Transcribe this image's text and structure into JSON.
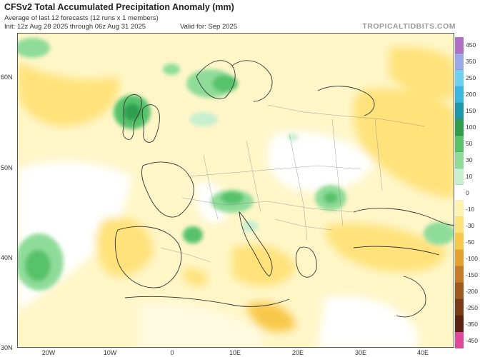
{
  "header": {
    "title": "CFSv2 Total Accumulated Precipitation Anomaly (mm)",
    "subtitle": "Average of last 12 forecasts (12 runs x 1 members)",
    "init": "Init: 12z Aug 28 2025 through 06z Aug 31 2025",
    "valid": "Valid for: Sep 2025",
    "brand": "TROPICALTIDBITS.COM"
  },
  "axes": {
    "lat_labels": [
      "60N",
      "50N",
      "40N",
      "30N"
    ],
    "lon_labels": [
      "20W",
      "10W",
      "0",
      "10E",
      "20E",
      "30E",
      "40E"
    ]
  },
  "colorbar": {
    "labels": [
      "450",
      "350",
      "250",
      "200",
      "150",
      "100",
      "50",
      "30",
      "10",
      "0",
      "-10",
      "-30",
      "-50",
      "-100",
      "-150",
      "-200",
      "-250",
      "-350",
      "-450"
    ],
    "colors": [
      "#b070c8",
      "#9aa8e8",
      "#6fd0f0",
      "#3cb8e0",
      "#1d98a8",
      "#2f9f4f",
      "#56c26a",
      "#8fdc9a",
      "#c8efcf",
      "#ffffff",
      "#fff3b0",
      "#ffe27a",
      "#f8c84a",
      "#e8a030",
      "#c87a28",
      "#a05a20",
      "#7a3a16",
      "#5a2410",
      "#e0489a"
    ],
    "accent_colors": {
      "wet": "#3fbf6a",
      "dry": "#f6c640",
      "land_border": "#555555"
    }
  }
}
